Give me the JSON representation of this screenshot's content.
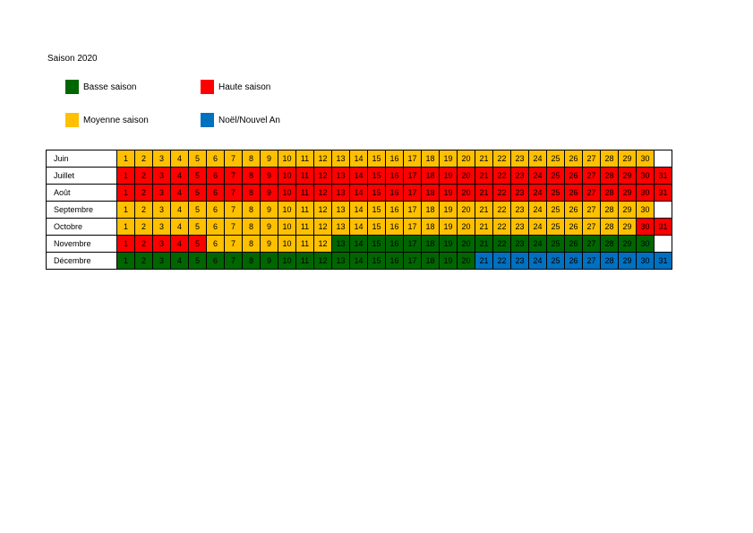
{
  "title": "Saison 2020",
  "legend": [
    {
      "key": "B",
      "label": "Basse saison",
      "color": "#006600"
    },
    {
      "key": "H",
      "label": "Haute saison",
      "color": "#ff0000"
    },
    {
      "key": "M",
      "label": "Moyenne saison",
      "color": "#ffc000"
    },
    {
      "key": "N",
      "label": "Noël/Nouvel An",
      "color": "#0070c0"
    }
  ],
  "months": [
    {
      "name": "Juin",
      "days": 30,
      "seasons": "MMMMMMMMMMMMMMMMMMMMMMMMMMMMMM"
    },
    {
      "name": "Juillet",
      "days": 31,
      "seasons": "HHHHHHHHHHHHHHHHHHHHHHHHHHHHHHH"
    },
    {
      "name": "Août",
      "days": 31,
      "seasons": "HHHHHHHHHHHHHHHHHHHHHHHHHHHHHHH"
    },
    {
      "name": "Septembre",
      "days": 30,
      "seasons": "MMMMMMMMMMMMMMMMMMMMMMMMMMMMMM"
    },
    {
      "name": "Octobre",
      "days": 31,
      "seasons": "MMMMMMMMMMMMMMMMMMMMMMMMMMMMMHH"
    },
    {
      "name": "Novembre",
      "days": 30,
      "seasons": "HHHHHMMMMMMMBBBBBBBBBBBBBBBBBB"
    },
    {
      "name": "Décembre",
      "days": 31,
      "seasons": "BBBBBBBBBBBBBBBBBBBBNNNNNNNNNNN"
    }
  ]
}
